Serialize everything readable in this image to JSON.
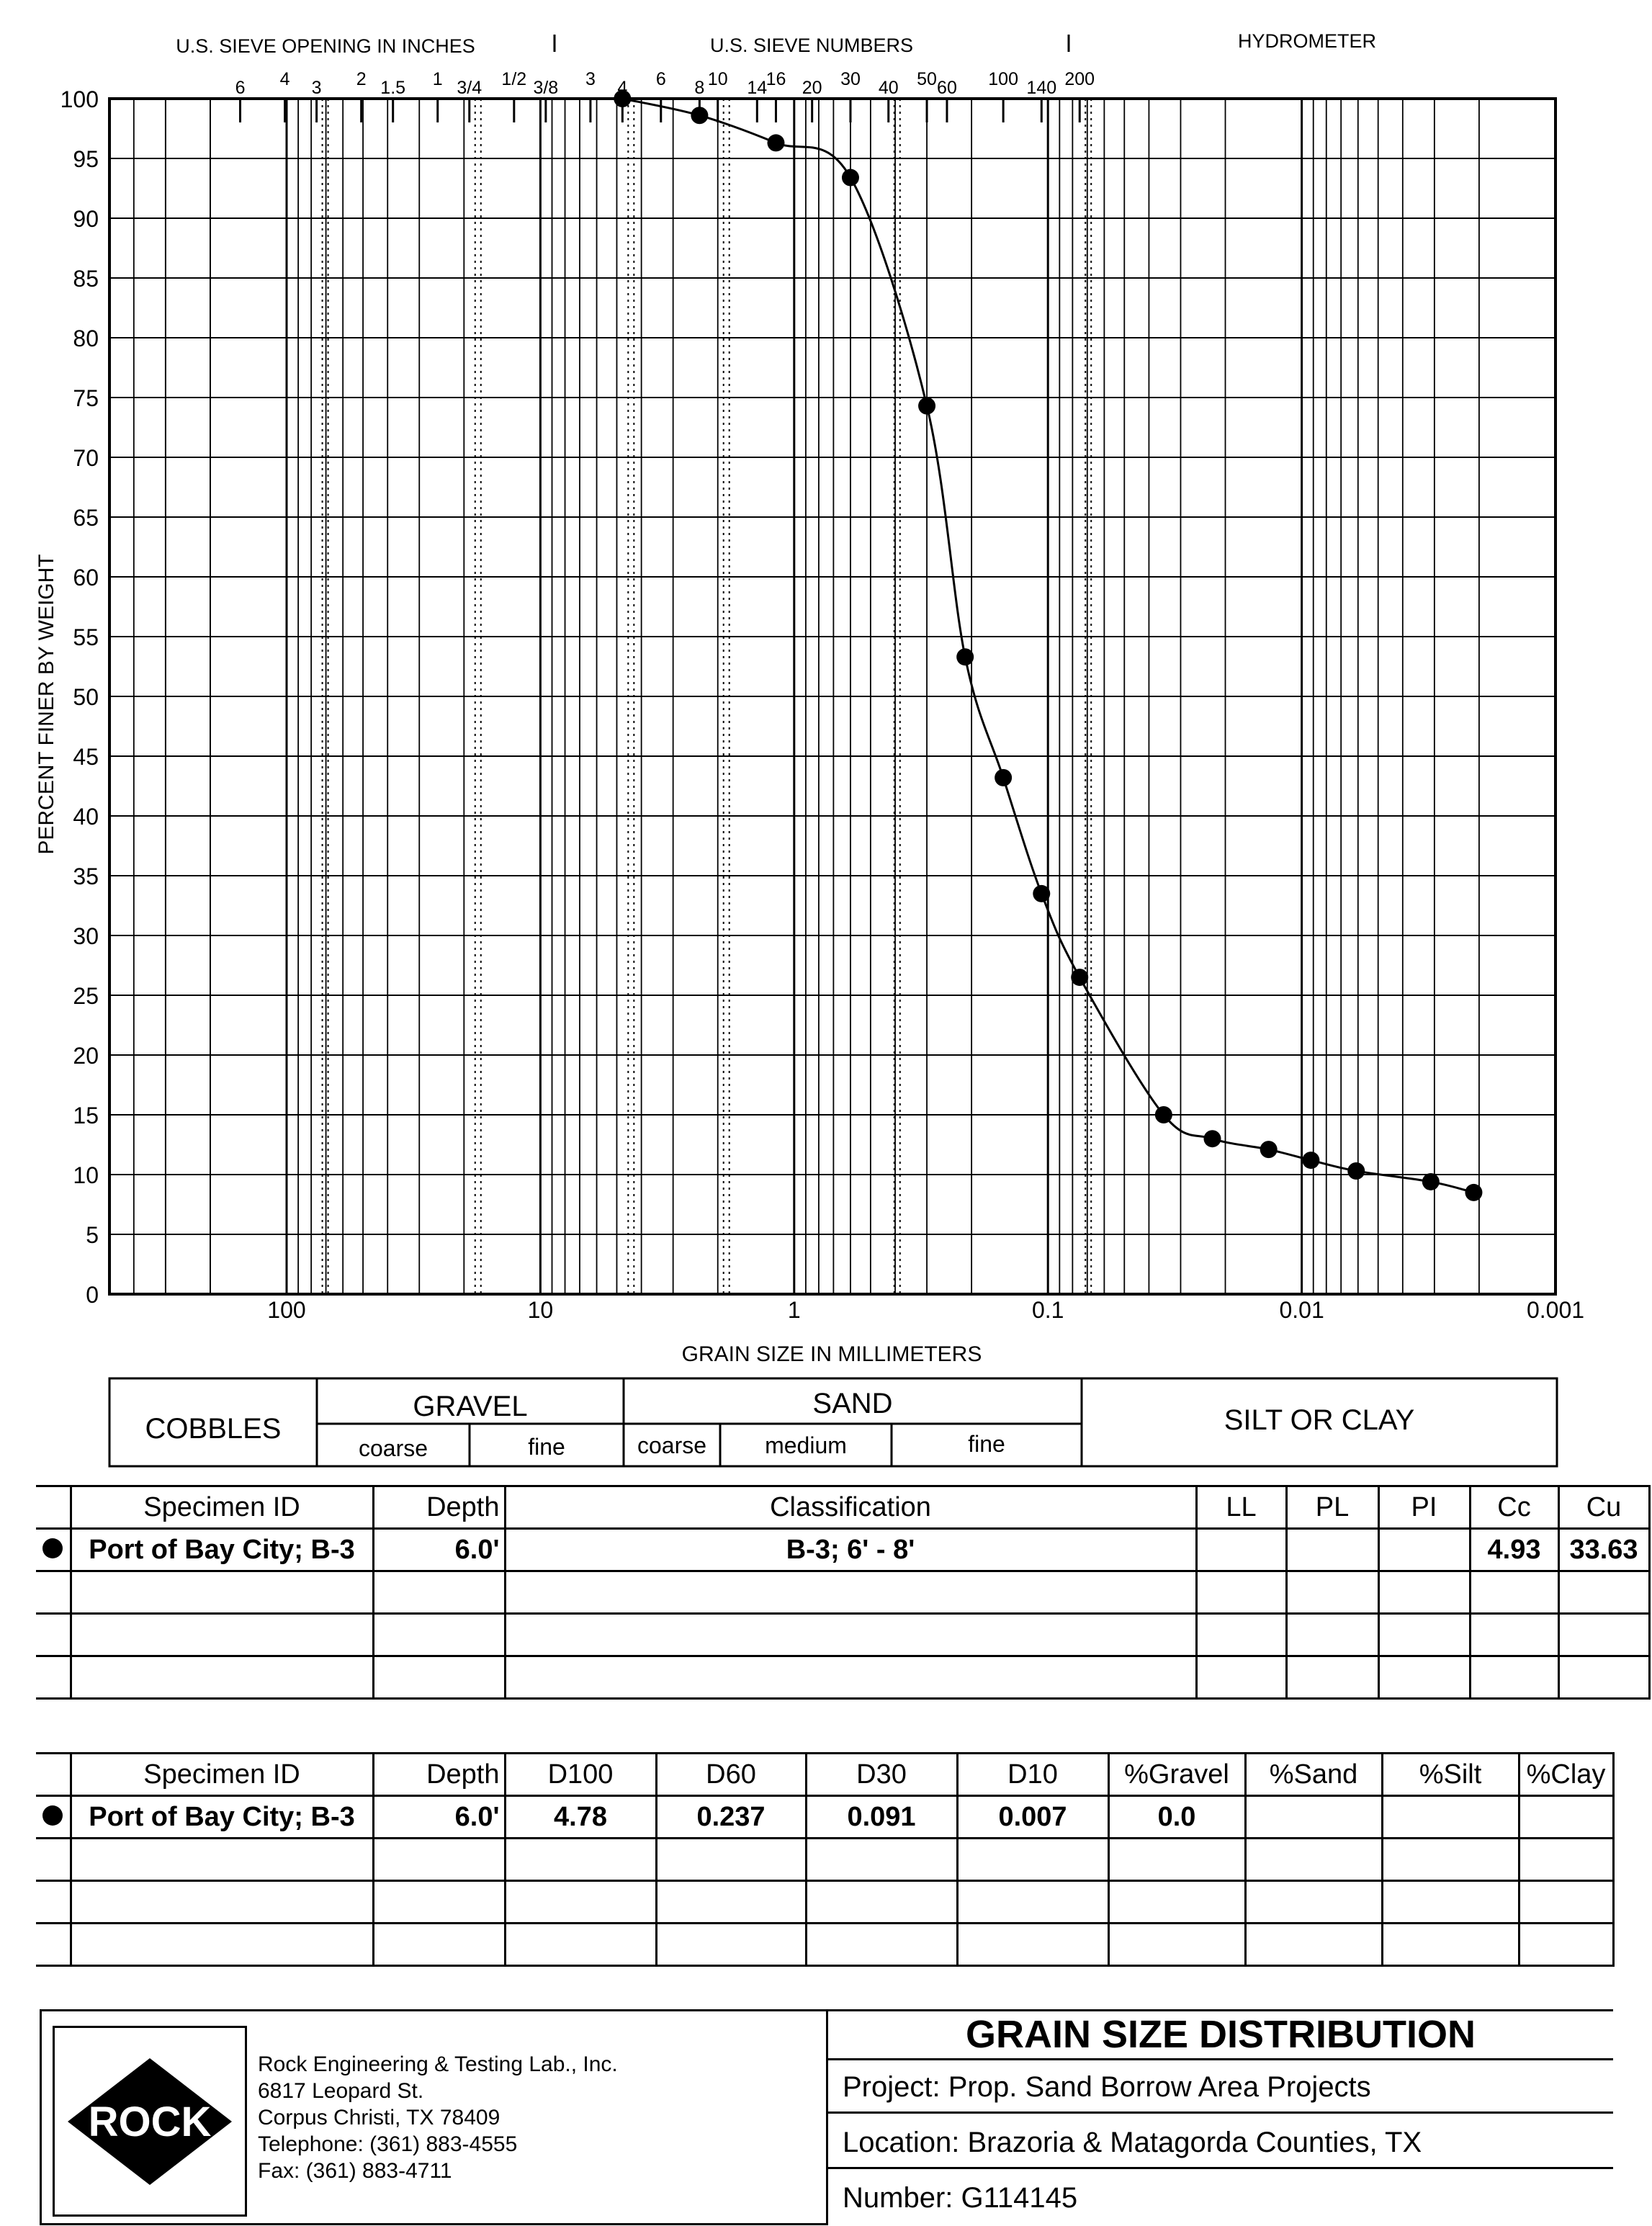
{
  "header": {
    "sieve_inches": "U.S. SIEVE OPENING IN INCHES",
    "sieve_numbers": "U.S. SIEVE NUMBERS",
    "hydrometer": "HYDROMETER",
    "inch_ticks": [
      {
        "label": "6",
        "mm": 152.4
      },
      {
        "label": "4",
        "mm": 101.6
      },
      {
        "label": "3",
        "mm": 76.2
      },
      {
        "label": "2",
        "mm": 50.8
      },
      {
        "label": "1.5",
        "mm": 38.1
      },
      {
        "label": "1",
        "mm": 25.4
      },
      {
        "label": "3/4",
        "mm": 19.05
      },
      {
        "label": "1/2",
        "mm": 12.7
      },
      {
        "label": "3/8",
        "mm": 9.525
      },
      {
        "label": "3",
        "mm": 6.35
      }
    ],
    "number_ticks": [
      {
        "label": "4",
        "mm": 4.75
      },
      {
        "label": "6",
        "mm": 3.35
      },
      {
        "label": "8",
        "mm": 2.36
      },
      {
        "label": "10",
        "mm": 2.0
      },
      {
        "label": "14",
        "mm": 1.4
      },
      {
        "label": "16",
        "mm": 1.18
      },
      {
        "label": "20",
        "mm": 0.85
      },
      {
        "label": "30",
        "mm": 0.6
      },
      {
        "label": "40",
        "mm": 0.425
      },
      {
        "label": "50",
        "mm": 0.3
      },
      {
        "label": "60",
        "mm": 0.25
      },
      {
        "label": "100",
        "mm": 0.15
      },
      {
        "label": "140",
        "mm": 0.106
      },
      {
        "label": "200",
        "mm": 0.075
      }
    ]
  },
  "chart_data": {
    "type": "scatter",
    "xlabel": "GRAIN SIZE IN MILLIMETERS",
    "ylabel": "PERCENT FINER BY WEIGHT",
    "x_scale": "log",
    "x_reversed": true,
    "xlim": [
      300,
      0.001
    ],
    "ylim": [
      0,
      100
    ],
    "y_ticks": [
      0,
      5,
      10,
      15,
      20,
      25,
      30,
      35,
      40,
      45,
      50,
      55,
      60,
      65,
      70,
      75,
      80,
      85,
      90,
      95,
      100
    ],
    "x_tick_labels": [
      {
        "label": "100",
        "value": 100
      },
      {
        "label": "10",
        "value": 10
      },
      {
        "label": "1",
        "value": 1
      },
      {
        "label": "0.1",
        "value": 0.1
      },
      {
        "label": "0.01",
        "value": 0.01
      },
      {
        "label": "0.001",
        "value": 0.001
      }
    ],
    "grid": true,
    "series": [
      {
        "marker": "filled-circle",
        "color": "#000000",
        "x": [
          4.75,
          2.36,
          1.18,
          0.6,
          0.3,
          0.212,
          0.15,
          0.106,
          0.075,
          0.035,
          0.0225,
          0.0135,
          0.0092,
          0.0061,
          0.0031,
          0.0021
        ],
        "y": [
          100.0,
          98.6,
          96.3,
          93.4,
          74.3,
          53.3,
          43.2,
          33.5,
          26.5,
          15.0,
          13.0,
          12.1,
          11.2,
          10.3,
          9.4,
          8.5
        ]
      }
    ]
  },
  "classification": {
    "cobbles": "COBBLES",
    "gravel": "GRAVEL",
    "sand": "SAND",
    "silt_clay": "SILT OR CLAY",
    "gravel_coarse": "coarse",
    "gravel_fine": "fine",
    "sand_coarse": "coarse",
    "sand_medium": "medium",
    "sand_fine": "fine"
  },
  "table1": {
    "headers": [
      "Specimen ID",
      "Depth",
      "Classification",
      "LL",
      "PL",
      "PI",
      "Cc",
      "Cu"
    ],
    "row": {
      "specimen": "Port of Bay City; B-3",
      "depth": "6.0'",
      "classification": "B-3; 6' - 8'",
      "ll": "",
      "pl": "",
      "pi": "",
      "cc": "4.93",
      "cu": "33.63"
    }
  },
  "table2": {
    "headers": [
      "Specimen ID",
      "Depth",
      "D100",
      "D60",
      "D30",
      "D10",
      "%Gravel",
      "%Sand",
      "%Silt",
      "%Clay"
    ],
    "row": {
      "specimen": "Port of Bay City; B-3",
      "depth": "6.0'",
      "d100": "4.78",
      "d60": "0.237",
      "d30": "0.091",
      "d10": "0.007",
      "gravel": "0.0",
      "sand": "",
      "silt": "",
      "clay": ""
    }
  },
  "footer": {
    "logo_text": "ROCK",
    "company": "Rock Engineering & Testing Lab., Inc.",
    "address1": "6817 Leopard St.",
    "address2": "Corpus Christi, TX 78409",
    "telephone": "Telephone:  (361) 883-4555",
    "fax": "Fax:  (361) 883-4711",
    "title": "GRAIN SIZE DISTRIBUTION",
    "project": "Project:  Prop. Sand Borrow Area Projects",
    "location": "Location:  Brazoria & Matagorda Counties, TX",
    "number": "Number:  G114145"
  }
}
